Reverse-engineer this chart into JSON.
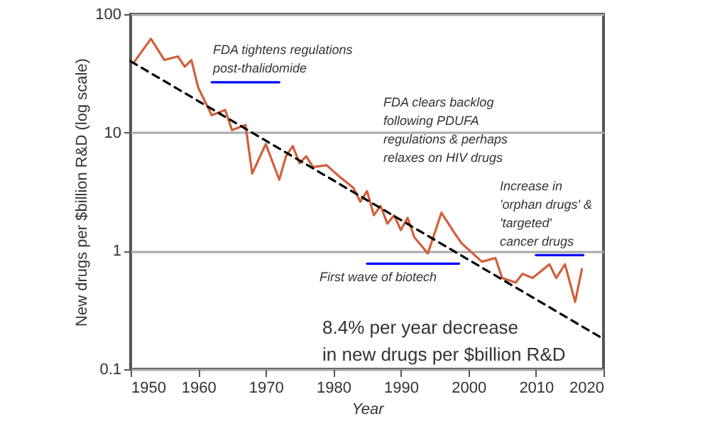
{
  "chart_data": {
    "type": "line",
    "xlabel": "Year",
    "ylabel": "New drugs per $billion R&D (log scale)",
    "xlim": [
      1950,
      2020
    ],
    "xticks": [
      1950,
      1960,
      1970,
      1980,
      1990,
      2000,
      2010,
      2020
    ],
    "ylim": [
      0.1,
      100
    ],
    "yticks": [
      0.1,
      1,
      10,
      100
    ],
    "log": "y",
    "grid": "y",
    "series": [
      {
        "color": "#d0603a",
        "x": [
          1950.6,
          1953,
          1955,
          1957,
          1958,
          1959,
          1960,
          1962,
          1964,
          1965,
          1967,
          1968,
          1970,
          1972,
          1973,
          1974,
          1975,
          1976,
          1977,
          1979,
          1981,
          1983,
          1984,
          1985,
          1986,
          1987,
          1988,
          1989,
          1990,
          1991,
          1992,
          1994,
          1996,
          1998,
          1999,
          2002,
          2004,
          2005,
          2007,
          2008,
          2009.5,
          2012,
          2013,
          2014.3,
          2015.8,
          2016.8
        ],
        "values": [
          40,
          62,
          41,
          44,
          36,
          41,
          24,
          14,
          15.5,
          10.5,
          11.6,
          4.5,
          8,
          4,
          6.3,
          7.7,
          5.5,
          6.3,
          5.1,
          5.3,
          4.2,
          3.4,
          2.6,
          3.2,
          2.0,
          2.4,
          1.7,
          2.0,
          1.5,
          1.9,
          1.3,
          0.95,
          2.1,
          1.4,
          1.16,
          0.81,
          0.87,
          0.59,
          0.54,
          0.64,
          0.59,
          0.77,
          0.59,
          0.77,
          0.37,
          0.7
        ]
      },
      {
        "color": "#000000",
        "line_style": "dashed",
        "x": [
          1950,
          2020
        ],
        "values": [
          40,
          0.18
        ]
      },
      {
        "color": "#0000ff",
        "x": [
          1962,
          1972
        ],
        "values": [
          26.6,
          26.6
        ]
      },
      {
        "color": "#0000ff",
        "x": [
          1985,
          1998.6
        ],
        "values": [
          0.78,
          0.78
        ]
      },
      {
        "color": "#0000ff",
        "x": [
          2010,
          2017
        ],
        "values": [
          0.92,
          0.92
        ]
      }
    ],
    "annotations": [
      "FDA tightens regulations\npost-thalidomide",
      "FDA clears backlog\nfollowing PDUFA\nregulations & perhaps\nrelaxes on HIV drugs",
      "Increase in\n'orphan drugs' &\n'targeted'\ncancer drugs",
      "First wave of biotech",
      "8.4% per year decrease\nin new drugs per $billion R&D"
    ]
  }
}
